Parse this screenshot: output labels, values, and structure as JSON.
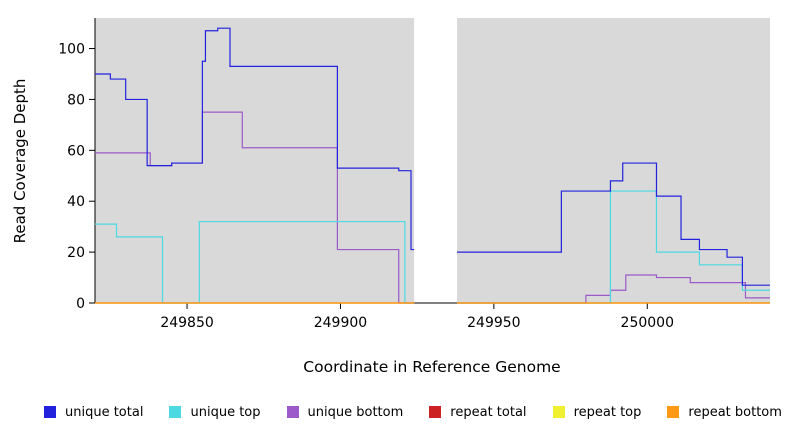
{
  "chart_data": {
    "type": "line",
    "subtype": "step-coverage-plot",
    "title": "",
    "xlabel": "Coordinate in Reference Genome",
    "ylabel": "Read Coverage Depth",
    "xlim": [
      249820,
      250040
    ],
    "ylim": [
      0,
      112
    ],
    "x_ticks": [
      249850,
      249900,
      249950,
      250000
    ],
    "y_ticks": [
      0,
      20,
      40,
      60,
      80,
      100
    ],
    "grid": false,
    "plot_bg": "#d9d9d9",
    "page_bg": "#ffffff",
    "gap_region": [
      249924,
      249938
    ],
    "legend_position": "bottom",
    "draw_order": [
      2,
      1,
      3,
      4,
      5,
      0
    ],
    "series": [
      {
        "name": "unique total",
        "color": "#2222dd",
        "segments": [
          [
            [
              249820,
              90
            ],
            [
              249825,
              88
            ],
            [
              249830,
              80
            ],
            [
              249837,
              54
            ],
            [
              249845,
              55
            ],
            [
              249855,
              95
            ],
            [
              249856,
              107
            ],
            [
              249860,
              108
            ],
            [
              249864,
              93
            ],
            [
              249899,
              53
            ],
            [
              249919,
              52
            ],
            [
              249923,
              21
            ],
            [
              249924,
              21
            ]
          ],
          [
            [
              249938,
              20
            ],
            [
              249972,
              44
            ],
            [
              249988,
              48
            ],
            [
              249992,
              55
            ],
            [
              250003,
              42
            ],
            [
              250011,
              25
            ],
            [
              250017,
              21
            ],
            [
              250026,
              18
            ],
            [
              250031,
              7
            ],
            [
              250040,
              7
            ]
          ]
        ]
      },
      {
        "name": "unique top",
        "color": "#4cd9e2",
        "segments": [
          [
            [
              249820,
              31
            ],
            [
              249827,
              26
            ],
            [
              249842,
              0
            ],
            [
              249854,
              32
            ],
            [
              249921,
              0
            ],
            [
              249924,
              0
            ]
          ],
          [
            [
              249938,
              0
            ],
            [
              249988,
              44
            ],
            [
              250003,
              20
            ],
            [
              250017,
              15
            ],
            [
              250031,
              5
            ],
            [
              250040,
              5
            ]
          ]
        ]
      },
      {
        "name": "unique bottom",
        "color": "#9b59c9",
        "segments": [
          [
            [
              249820,
              59
            ],
            [
              249838,
              54
            ],
            [
              249845,
              55
            ],
            [
              249855,
              75
            ],
            [
              249868,
              61
            ],
            [
              249899,
              21
            ],
            [
              249919,
              0
            ],
            [
              249924,
              0
            ]
          ],
          [
            [
              249938,
              0
            ],
            [
              249980,
              3
            ],
            [
              249988,
              5
            ],
            [
              249993,
              11
            ],
            [
              250003,
              10
            ],
            [
              250014,
              8
            ],
            [
              250032,
              2
            ],
            [
              250040,
              2
            ]
          ]
        ]
      },
      {
        "name": "repeat total",
        "color": "#cc2222",
        "segments": [
          [
            [
              249820,
              0
            ],
            [
              249924,
              0
            ]
          ],
          [
            [
              249938,
              0
            ],
            [
              250040,
              0
            ]
          ]
        ]
      },
      {
        "name": "repeat top",
        "color": "#f0ef30",
        "segments": [
          [
            [
              249820,
              0
            ],
            [
              249924,
              0
            ]
          ],
          [
            [
              249938,
              0
            ],
            [
              250040,
              0
            ]
          ]
        ]
      },
      {
        "name": "repeat bottom",
        "color": "#ff9913",
        "segments": [
          [
            [
              249820,
              0
            ],
            [
              249924,
              0
            ]
          ],
          [
            [
              249938,
              0
            ],
            [
              250040,
              0
            ]
          ]
        ]
      }
    ]
  }
}
